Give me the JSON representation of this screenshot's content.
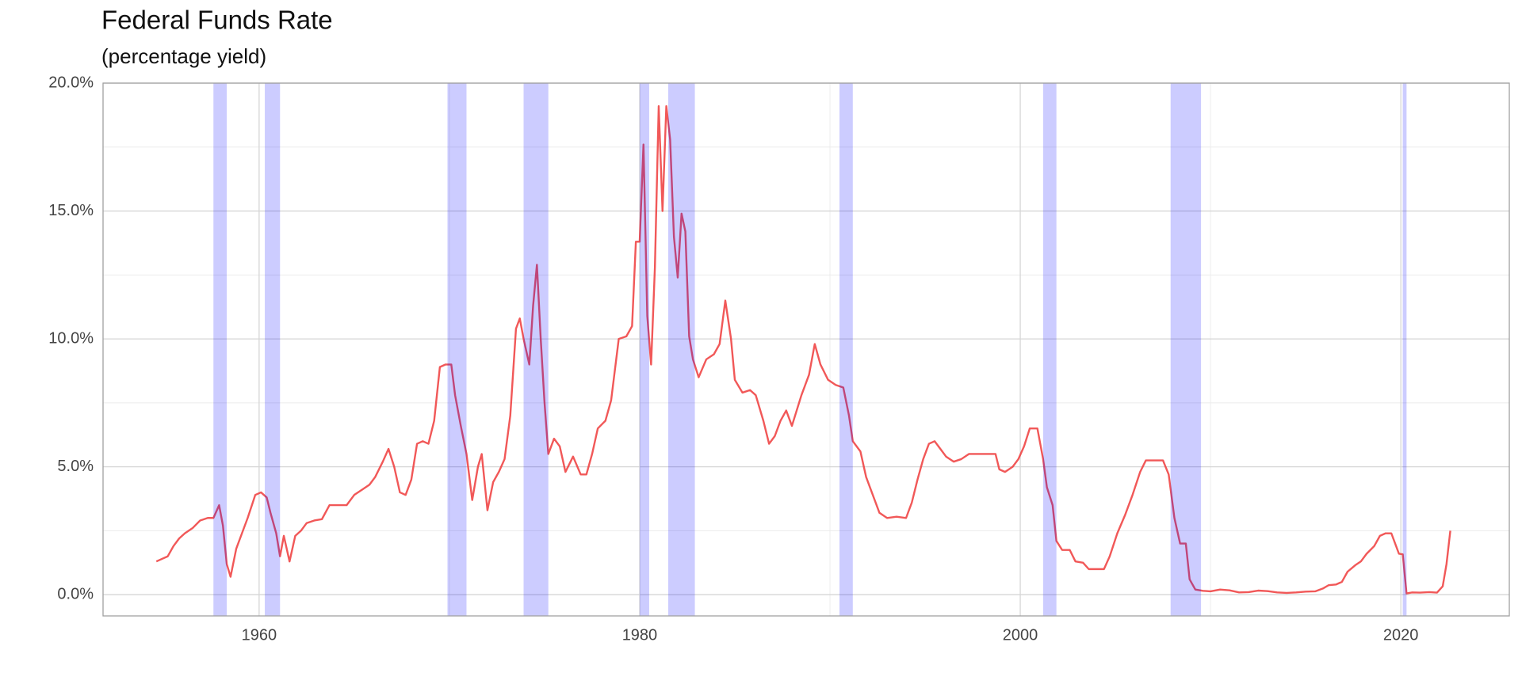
{
  "chart_data": {
    "type": "line",
    "title": "Federal Funds Rate",
    "subtitle": "(percentage yield)",
    "x": [
      1954.6,
      1954.9,
      1955.2,
      1955.5,
      1955.8,
      1956.1,
      1956.5,
      1956.9,
      1957.3,
      1957.6,
      1957.9,
      1958.1,
      1958.3,
      1958.5,
      1958.8,
      1959.1,
      1959.4,
      1959.8,
      1960.1,
      1960.4,
      1960.6,
      1960.9,
      1961.1,
      1961.3,
      1961.6,
      1961.9,
      1962.2,
      1962.5,
      1962.9,
      1963.3,
      1963.7,
      1964.1,
      1964.6,
      1965.0,
      1965.4,
      1965.8,
      1966.1,
      1966.5,
      1966.8,
      1967.1,
      1967.4,
      1967.7,
      1968.0,
      1968.3,
      1968.6,
      1968.9,
      1969.2,
      1969.5,
      1969.8,
      1970.1,
      1970.3,
      1970.6,
      1970.9,
      1971.2,
      1971.5,
      1971.7,
      1972.0,
      1972.3,
      1972.6,
      1972.9,
      1973.2,
      1973.5,
      1973.7,
      1973.9,
      1974.2,
      1974.4,
      1974.6,
      1974.8,
      1975.0,
      1975.2,
      1975.5,
      1975.8,
      1976.1,
      1976.5,
      1976.9,
      1977.2,
      1977.5,
      1977.8,
      1978.2,
      1978.5,
      1978.9,
      1979.3,
      1979.6,
      1979.8,
      1980.0,
      1980.2,
      1980.4,
      1980.6,
      1980.8,
      1981.0,
      1981.2,
      1981.4,
      1981.6,
      1981.8,
      1982.0,
      1982.2,
      1982.4,
      1982.6,
      1982.8,
      1983.1,
      1983.5,
      1983.9,
      1984.2,
      1984.5,
      1984.8,
      1985.0,
      1985.4,
      1985.8,
      1986.1,
      1986.5,
      1986.8,
      1987.1,
      1987.4,
      1987.7,
      1988.0,
      1988.5,
      1988.9,
      1989.2,
      1989.5,
      1989.9,
      1990.3,
      1990.7,
      1991.0,
      1991.2,
      1991.6,
      1991.9,
      1992.2,
      1992.6,
      1993.0,
      1993.5,
      1994.0,
      1994.3,
      1994.6,
      1994.9,
      1995.2,
      1995.5,
      1995.8,
      1996.1,
      1996.5,
      1996.9,
      1997.3,
      1997.8,
      1998.3,
      1998.7,
      1998.9,
      1999.2,
      1999.6,
      1999.9,
      2000.2,
      2000.5,
      2000.9,
      2001.2,
      2001.4,
      2001.7,
      2001.9,
      2002.2,
      2002.6,
      2002.9,
      2003.3,
      2003.6,
      2004.0,
      2004.4,
      2004.7,
      2005.1,
      2005.5,
      2005.9,
      2006.3,
      2006.6,
      2007.0,
      2007.5,
      2007.8,
      2008.1,
      2008.4,
      2008.7,
      2008.9,
      2009.2,
      2009.6,
      2010.0,
      2010.5,
      2011.0,
      2011.5,
      2012.0,
      2012.5,
      2013.0,
      2013.5,
      2014.0,
      2014.5,
      2015.0,
      2015.5,
      2015.9,
      2016.2,
      2016.6,
      2016.9,
      2017.2,
      2017.6,
      2017.9,
      2018.2,
      2018.6,
      2018.9,
      2019.2,
      2019.5,
      2019.7,
      2019.9,
      2020.1,
      2020.3,
      2020.6,
      2021.0,
      2021.5,
      2021.9,
      2022.2,
      2022.4,
      2022.6
    ],
    "values": [
      1.3,
      1.4,
      1.5,
      1.9,
      2.2,
      2.4,
      2.6,
      2.9,
      3.0,
      3.0,
      3.5,
      2.7,
      1.2,
      0.7,
      1.8,
      2.4,
      3.0,
      3.9,
      4.0,
      3.8,
      3.2,
      2.4,
      1.5,
      2.3,
      1.3,
      2.3,
      2.5,
      2.8,
      2.9,
      2.95,
      3.5,
      3.5,
      3.5,
      3.9,
      4.1,
      4.3,
      4.6,
      5.2,
      5.7,
      5.0,
      4.0,
      3.9,
      4.5,
      5.9,
      6.0,
      5.9,
      6.8,
      8.9,
      9.0,
      9.0,
      7.8,
      6.6,
      5.5,
      3.7,
      5.0,
      5.5,
      3.3,
      4.4,
      4.8,
      5.3,
      7.0,
      10.4,
      10.8,
      10.0,
      9.0,
      11.3,
      12.9,
      10.0,
      7.5,
      5.5,
      6.1,
      5.8,
      4.8,
      5.4,
      4.7,
      4.7,
      5.5,
      6.5,
      6.8,
      7.6,
      10.0,
      10.1,
      10.5,
      13.8,
      13.8,
      17.6,
      10.9,
      9.0,
      12.8,
      19.1,
      15.0,
      19.1,
      17.8,
      14.0,
      12.4,
      14.9,
      14.2,
      10.1,
      9.2,
      8.5,
      9.2,
      9.4,
      9.8,
      11.5,
      10.0,
      8.4,
      7.9,
      8.0,
      7.8,
      6.8,
      5.9,
      6.2,
      6.8,
      7.2,
      6.6,
      7.8,
      8.6,
      9.8,
      9.0,
      8.4,
      8.2,
      8.1,
      7.0,
      6.0,
      5.6,
      4.6,
      4.0,
      3.2,
      3.0,
      3.05,
      3.0,
      3.6,
      4.5,
      5.3,
      5.9,
      6.0,
      5.7,
      5.4,
      5.2,
      5.3,
      5.5,
      5.5,
      5.5,
      5.5,
      4.9,
      4.8,
      5.0,
      5.3,
      5.8,
      6.5,
      6.5,
      5.3,
      4.2,
      3.5,
      2.1,
      1.75,
      1.75,
      1.3,
      1.25,
      1.0,
      1.0,
      1.0,
      1.5,
      2.4,
      3.1,
      3.9,
      4.8,
      5.25,
      5.25,
      5.25,
      4.7,
      3.0,
      2.0,
      2.0,
      0.6,
      0.2,
      0.15,
      0.13,
      0.2,
      0.17,
      0.09,
      0.1,
      0.16,
      0.14,
      0.09,
      0.07,
      0.09,
      0.12,
      0.13,
      0.24,
      0.37,
      0.4,
      0.5,
      0.9,
      1.15,
      1.3,
      1.6,
      1.9,
      2.3,
      2.4,
      2.4,
      2.0,
      1.6,
      1.58,
      0.05,
      0.09,
      0.08,
      0.1,
      0.08,
      0.33,
      1.2,
      2.5
    ],
    "color": "#ee3b3b",
    "recessions": [
      [
        1957.6,
        1958.3
      ],
      [
        1960.3,
        1961.1
      ],
      [
        1969.9,
        1970.9
      ],
      [
        1973.9,
        1975.2
      ],
      [
        1980.0,
        1980.5
      ],
      [
        1981.5,
        1982.9
      ],
      [
        1990.5,
        1991.2
      ],
      [
        2001.2,
        2001.9
      ],
      [
        2007.9,
        2009.5
      ],
      [
        2020.1,
        2020.3
      ]
    ],
    "recession_color": "#0000ff",
    "xlim": [
      1951.8,
      2025.7
    ],
    "xticks": [
      1960,
      1980,
      2000,
      2020
    ],
    "minor_xticks": [
      1970,
      1990,
      2010
    ],
    "ylim": [
      -0.83,
      20
    ],
    "yticks": [
      {
        "value": 0,
        "label": "0.0%"
      },
      {
        "value": 5,
        "label": "5.0%"
      },
      {
        "value": 10,
        "label": "10.0%"
      },
      {
        "value": 15,
        "label": "15.0%"
      },
      {
        "value": 20,
        "label": "20.0%"
      }
    ],
    "minor_yticks": [
      2.5,
      7.5,
      12.5,
      17.5
    ],
    "grid": true
  }
}
